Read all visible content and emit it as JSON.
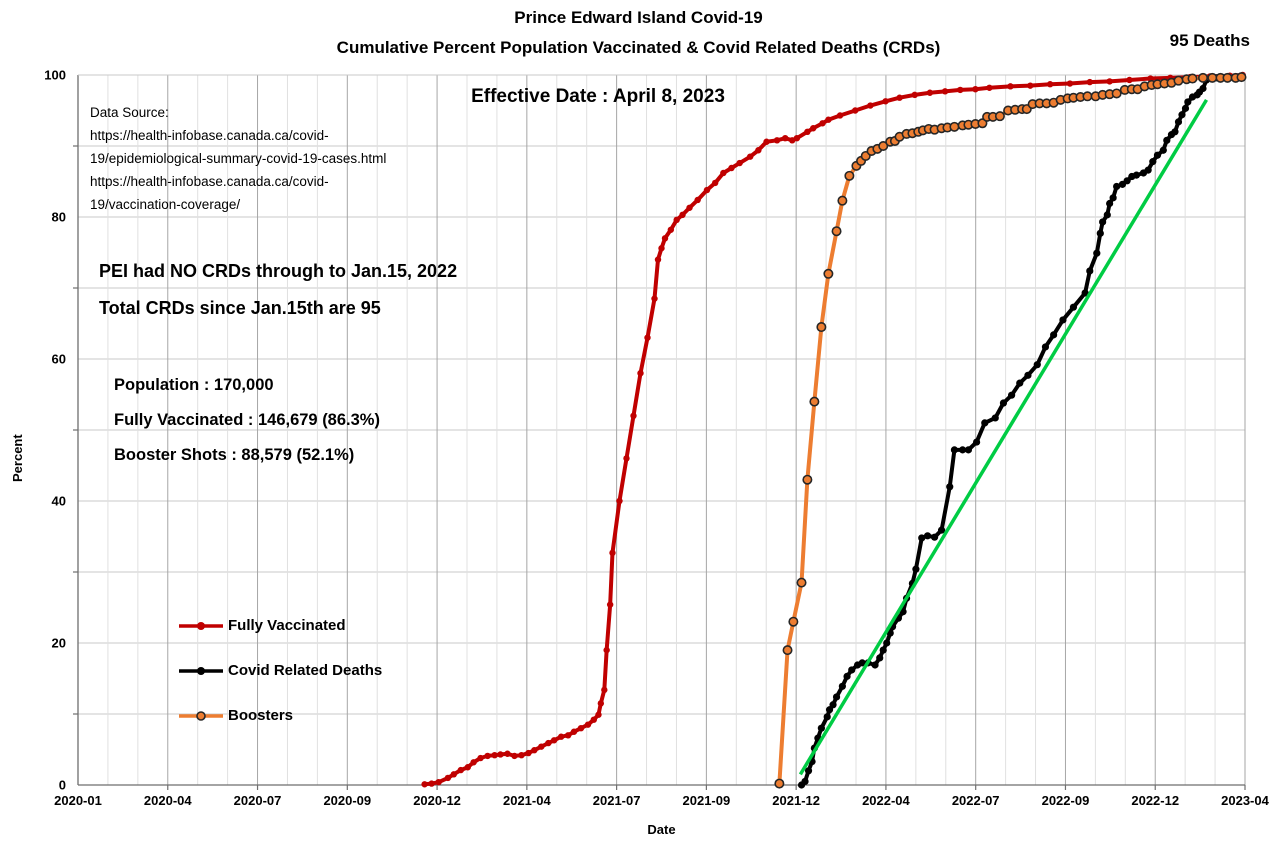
{
  "chart_data": {
    "type": "line",
    "title_line1": "Prince Edward Island Covid-19",
    "title_line2": "Cumulative Percent Population Vaccinated & Covid Related Deaths (CRDs)",
    "xlabel": "Date",
    "ylabel": "Percent",
    "ylim": [
      0,
      100
    ],
    "y_major_ticks": [
      0,
      20,
      40,
      60,
      80,
      100
    ],
    "y_grid_interval": 10,
    "x_tick_labels": [
      "2020-01",
      "2020-04",
      "2020-07",
      "2020-09",
      "2020-12",
      "2021-04",
      "2021-07",
      "2021-09",
      "2021-12",
      "2022-04",
      "2022-07",
      "2022-09",
      "2022-12",
      "2023-04"
    ],
    "x_minor_per_interval": 3,
    "grid": "on",
    "legend_position": "left-middle",
    "colors": {
      "fully_vaccinated": "#C00000",
      "covid_related_deaths": "#000000",
      "boosters": "#ED7D31",
      "booster_marker_ring": "#262626",
      "trend_line": "#00CC44",
      "grid_minor": "#e0e0e0",
      "grid_major": "#a6a6a6",
      "grid_horizontal": "#c9c9c9",
      "axis_line": "#6e6e6e"
    },
    "series": [
      {
        "name": "Fully Vaccinated",
        "color": "#C00000",
        "marker": "filled-circle",
        "points": [
          [
            0.297,
            0.1
          ],
          [
            0.303,
            0.2
          ],
          [
            0.309,
            0.4
          ],
          [
            0.317,
            1.0
          ],
          [
            0.322,
            1.5
          ],
          [
            0.328,
            2.1
          ],
          [
            0.334,
            2.5
          ],
          [
            0.339,
            3.2
          ],
          [
            0.345,
            3.8
          ],
          [
            0.351,
            4.1
          ],
          [
            0.357,
            4.2
          ],
          [
            0.362,
            4.3
          ],
          [
            0.368,
            4.4
          ],
          [
            0.374,
            4.1
          ],
          [
            0.38,
            4.2
          ],
          [
            0.386,
            4.5
          ],
          [
            0.391,
            4.9
          ],
          [
            0.397,
            5.4
          ],
          [
            0.403,
            5.9
          ],
          [
            0.408,
            6.3
          ],
          [
            0.414,
            6.8
          ],
          [
            0.42,
            7.0
          ],
          [
            0.425,
            7.5
          ],
          [
            0.431,
            8.0
          ],
          [
            0.437,
            8.5
          ],
          [
            0.442,
            9.2
          ],
          [
            0.446,
            9.9
          ],
          [
            0.448,
            11.5
          ],
          [
            0.451,
            13.4
          ],
          [
            0.453,
            19.0
          ],
          [
            0.456,
            25.4
          ],
          [
            0.458,
            32.7
          ],
          [
            0.464,
            40.0
          ],
          [
            0.47,
            46.0
          ],
          [
            0.476,
            52.0
          ],
          [
            0.482,
            58.0
          ],
          [
            0.488,
            63.0
          ],
          [
            0.494,
            68.5
          ],
          [
            0.497,
            74.0
          ],
          [
            0.5,
            75.6
          ],
          [
            0.503,
            77.0
          ],
          [
            0.508,
            78.2
          ],
          [
            0.513,
            79.6
          ],
          [
            0.518,
            80.3
          ],
          [
            0.524,
            81.3
          ],
          [
            0.531,
            82.4
          ],
          [
            0.539,
            83.8
          ],
          [
            0.546,
            84.8
          ],
          [
            0.553,
            86.2
          ],
          [
            0.56,
            86.9
          ],
          [
            0.567,
            87.6
          ],
          [
            0.576,
            88.5
          ],
          [
            0.583,
            89.4
          ],
          [
            0.59,
            90.6
          ],
          [
            0.599,
            90.8
          ],
          [
            0.606,
            91.1
          ],
          [
            0.612,
            90.8
          ],
          [
            0.616,
            91.1
          ],
          [
            0.625,
            92.0
          ],
          [
            0.63,
            92.5
          ],
          [
            0.638,
            93.2
          ],
          [
            0.643,
            93.7
          ],
          [
            0.653,
            94.3
          ],
          [
            0.666,
            95.0
          ],
          [
            0.679,
            95.7
          ],
          [
            0.692,
            96.3
          ],
          [
            0.704,
            96.8
          ],
          [
            0.717,
            97.2
          ],
          [
            0.73,
            97.5
          ],
          [
            0.743,
            97.7
          ],
          [
            0.756,
            97.9
          ],
          [
            0.769,
            98.0
          ],
          [
            0.781,
            98.2
          ],
          [
            0.799,
            98.4
          ],
          [
            0.816,
            98.5
          ],
          [
            0.833,
            98.7
          ],
          [
            0.85,
            98.8
          ],
          [
            0.867,
            99.0
          ],
          [
            0.884,
            99.1
          ],
          [
            0.901,
            99.3
          ],
          [
            0.919,
            99.5
          ],
          [
            0.936,
            99.6
          ],
          [
            0.953,
            99.7
          ],
          [
            0.97,
            99.8
          ],
          [
            0.987,
            99.9
          ],
          [
            0.998,
            100.0
          ]
        ]
      },
      {
        "name": "Covid Related Deaths",
        "color": "#000000",
        "marker": "filled-circle",
        "points": [
          [
            0.62,
            0.0
          ],
          [
            0.623,
            0.5
          ],
          [
            0.626,
            2.0
          ],
          [
            0.629,
            3.3
          ],
          [
            0.631,
            5.2
          ],
          [
            0.634,
            6.6
          ],
          [
            0.637,
            8.0
          ],
          [
            0.642,
            9.6
          ],
          [
            0.644,
            10.6
          ],
          [
            0.647,
            11.3
          ],
          [
            0.65,
            12.4
          ],
          [
            0.655,
            13.9
          ],
          [
            0.659,
            15.3
          ],
          [
            0.663,
            16.2
          ],
          [
            0.668,
            16.9
          ],
          [
            0.672,
            17.2
          ],
          [
            0.677,
            17.2
          ],
          [
            0.683,
            16.9
          ],
          [
            0.687,
            17.9
          ],
          [
            0.69,
            19.0
          ],
          [
            0.693,
            20.0
          ],
          [
            0.696,
            21.4
          ],
          [
            0.698,
            22.3
          ],
          [
            0.703,
            23.5
          ],
          [
            0.707,
            24.4
          ],
          [
            0.71,
            26.3
          ],
          [
            0.715,
            28.4
          ],
          [
            0.718,
            30.4
          ],
          [
            0.723,
            34.8
          ],
          [
            0.728,
            35.1
          ],
          [
            0.734,
            34.9
          ],
          [
            0.74,
            35.9
          ],
          [
            0.747,
            42.0
          ],
          [
            0.751,
            47.2
          ],
          [
            0.758,
            47.2
          ],
          [
            0.763,
            47.2
          ],
          [
            0.77,
            48.3
          ],
          [
            0.777,
            51.0
          ],
          [
            0.786,
            51.7
          ],
          [
            0.793,
            53.8
          ],
          [
            0.8,
            54.9
          ],
          [
            0.807,
            56.6
          ],
          [
            0.814,
            57.7
          ],
          [
            0.822,
            59.2
          ],
          [
            0.829,
            61.7
          ],
          [
            0.836,
            63.4
          ],
          [
            0.844,
            65.5
          ],
          [
            0.853,
            67.3
          ],
          [
            0.863,
            69.3
          ],
          [
            0.867,
            72.4
          ],
          [
            0.873,
            74.9
          ],
          [
            0.876,
            77.7
          ],
          [
            0.878,
            79.3
          ],
          [
            0.882,
            80.3
          ],
          [
            0.884,
            81.9
          ],
          [
            0.887,
            82.7
          ],
          [
            0.89,
            84.3
          ],
          [
            0.895,
            84.6
          ],
          [
            0.899,
            85.1
          ],
          [
            0.903,
            85.7
          ],
          [
            0.907,
            85.9
          ],
          [
            0.913,
            86.2
          ],
          [
            0.917,
            86.6
          ],
          [
            0.921,
            87.8
          ],
          [
            0.925,
            88.7
          ],
          [
            0.93,
            89.4
          ],
          [
            0.933,
            90.8
          ],
          [
            0.937,
            91.6
          ],
          [
            0.94,
            92.0
          ],
          [
            0.943,
            93.4
          ],
          [
            0.946,
            94.4
          ],
          [
            0.949,
            95.3
          ],
          [
            0.951,
            96.2
          ],
          [
            0.955,
            96.9
          ],
          [
            0.959,
            97.2
          ],
          [
            0.961,
            97.6
          ],
          [
            0.964,
            98.1
          ],
          [
            0.967,
            99.3
          ],
          [
            0.972,
            99.5
          ],
          [
            0.976,
            99.6
          ],
          [
            0.98,
            99.7
          ]
        ]
      },
      {
        "name": "Boosters",
        "color": "#ED7D31",
        "marker": "ringed-circle",
        "points": [
          [
            0.601,
            0.2
          ],
          [
            0.608,
            19.0
          ],
          [
            0.613,
            23.0
          ],
          [
            0.62,
            28.5
          ],
          [
            0.625,
            43.0
          ],
          [
            0.631,
            54.0
          ],
          [
            0.637,
            64.5
          ],
          [
            0.643,
            72.0
          ],
          [
            0.65,
            78.0
          ],
          [
            0.655,
            82.3
          ],
          [
            0.661,
            85.8
          ],
          [
            0.667,
            87.2
          ],
          [
            0.671,
            87.9
          ],
          [
            0.675,
            88.6
          ],
          [
            0.68,
            89.3
          ],
          [
            0.685,
            89.6
          ],
          [
            0.69,
            90.0
          ],
          [
            0.696,
            90.6
          ],
          [
            0.7,
            90.7
          ],
          [
            0.704,
            91.3
          ],
          [
            0.71,
            91.7
          ],
          [
            0.715,
            91.8
          ],
          [
            0.72,
            92.0
          ],
          [
            0.724,
            92.2
          ],
          [
            0.729,
            92.4
          ],
          [
            0.734,
            92.3
          ],
          [
            0.74,
            92.5
          ],
          [
            0.745,
            92.6
          ],
          [
            0.751,
            92.7
          ],
          [
            0.758,
            92.9
          ],
          [
            0.763,
            93.0
          ],
          [
            0.769,
            93.1
          ],
          [
            0.775,
            93.2
          ],
          [
            0.779,
            94.1
          ],
          [
            0.784,
            94.1
          ],
          [
            0.79,
            94.2
          ],
          [
            0.797,
            95.0
          ],
          [
            0.803,
            95.1
          ],
          [
            0.809,
            95.2
          ],
          [
            0.813,
            95.2
          ],
          [
            0.818,
            95.9
          ],
          [
            0.824,
            96.0
          ],
          [
            0.83,
            96.0
          ],
          [
            0.836,
            96.1
          ],
          [
            0.842,
            96.5
          ],
          [
            0.848,
            96.7
          ],
          [
            0.853,
            96.8
          ],
          [
            0.859,
            96.9
          ],
          [
            0.865,
            97.0
          ],
          [
            0.872,
            97.0
          ],
          [
            0.878,
            97.2
          ],
          [
            0.884,
            97.3
          ],
          [
            0.89,
            97.4
          ],
          [
            0.897,
            97.9
          ],
          [
            0.903,
            98.0
          ],
          [
            0.908,
            98.0
          ],
          [
            0.914,
            98.4
          ],
          [
            0.92,
            98.6
          ],
          [
            0.925,
            98.7
          ],
          [
            0.931,
            98.8
          ],
          [
            0.937,
            98.9
          ],
          [
            0.943,
            99.2
          ],
          [
            0.95,
            99.4
          ],
          [
            0.955,
            99.5
          ],
          [
            0.964,
            99.6
          ],
          [
            0.972,
            99.6
          ],
          [
            0.979,
            99.6
          ],
          [
            0.985,
            99.6
          ],
          [
            0.992,
            99.6
          ],
          [
            0.997,
            99.7
          ]
        ]
      }
    ],
    "trend_line": {
      "color": "#00CC44",
      "points": [
        [
          0.619,
          1.5
        ],
        [
          0.967,
          96.5
        ]
      ]
    }
  },
  "annotations": {
    "deaths_note": "95 Deaths",
    "effective_date": "Effective Date : April 8, 2023",
    "data_source": "Data Source:\nhttps://health-infobase.canada.ca/covid-\n19/epidemiological-summary-covid-19-cases.html\nhttps://health-infobase.canada.ca/covid-\n19/vaccination-coverage/",
    "crd_note_line1": "PEI had NO CRDs through to Jan.15, 2022",
    "crd_note_line2": "Total CRDs since Jan.15th are 95",
    "stats_line1": "Population : 170,000",
    "stats_line2": "Fully Vaccinated : 146,679 (86.3%)",
    "stats_line3": "Booster Shots : 88,579 (52.1%)"
  }
}
